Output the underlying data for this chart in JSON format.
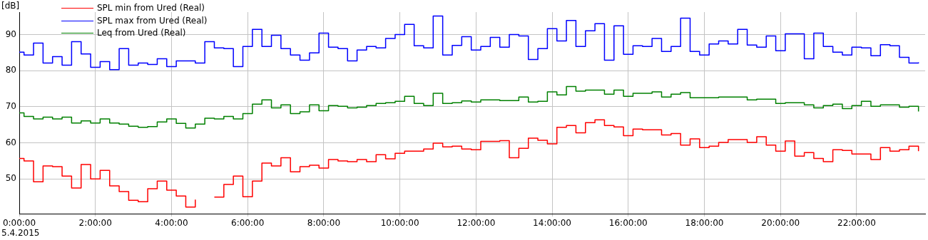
{
  "chart_data": {
    "type": "step",
    "ylabel": "[dB]",
    "annotations": [
      "5.4.2015"
    ],
    "x": [
      0,
      0.125,
      0.375,
      0.625,
      0.875,
      1.125,
      1.375,
      1.625,
      1.875,
      2.125,
      2.375,
      2.625,
      2.875,
      3.125,
      3.375,
      3.625,
      3.875,
      4.125,
      4.375,
      4.625,
      4.875,
      5.125,
      5.375,
      5.625,
      5.875,
      6.125,
      6.375,
      6.625,
      6.875,
      7.125,
      7.375,
      7.625,
      7.875,
      8.125,
      8.375,
      8.625,
      8.875,
      9.125,
      9.375,
      9.625,
      9.875,
      10.125,
      10.375,
      10.625,
      10.875,
      11.125,
      11.375,
      11.625,
      11.875,
      12.125,
      12.375,
      12.625,
      12.875,
      13.125,
      13.375,
      13.625,
      13.875,
      14.125,
      14.375,
      14.625,
      14.875,
      15.125,
      15.375,
      15.625,
      15.875,
      16.125,
      16.375,
      16.625,
      16.875,
      17.125,
      17.375,
      17.625,
      17.875,
      18.125,
      18.375,
      18.625,
      18.875,
      19.125,
      19.375,
      19.625,
      19.875,
      20.125,
      20.375,
      20.625,
      20.875,
      21.125,
      21.375,
      21.625,
      21.875,
      22.125,
      22.375,
      22.625,
      22.875,
      23.125,
      23.375,
      23.625
    ],
    "series": [
      {
        "name": "SPL min from Ured (Real)",
        "color": "#ff0000",
        "values": [
          55.7,
          55.0,
          49.2,
          53.6,
          53.4,
          50.8,
          47.5,
          54.0,
          50.0,
          52.4,
          48.1,
          46.5,
          44.1,
          43.7,
          47.3,
          49.4,
          46.9,
          45.3,
          42.2,
          44.3,
          null,
          45.0,
          48.5,
          50.8,
          45.1,
          49.4,
          54.4,
          53.6,
          55.9,
          52.0,
          53.4,
          53.8,
          53.0,
          55.4,
          55.0,
          54.8,
          55.4,
          54.8,
          56.7,
          55.6,
          57.1,
          57.7,
          57.7,
          58.3,
          59.9,
          58.9,
          59.1,
          58.3,
          58.1,
          60.4,
          60.4,
          60.6,
          55.9,
          58.5,
          61.3,
          60.7,
          59.7,
          64.3,
          64.8,
          62.8,
          65.6,
          66.4,
          64.8,
          64.4,
          62.0,
          63.8,
          63.6,
          63.6,
          62.2,
          62.6,
          59.4,
          61.1,
          58.7,
          59.1,
          60.1,
          60.9,
          60.9,
          60.1,
          61.7,
          59.4,
          57.7,
          60.5,
          56.3,
          57.3,
          55.7,
          54.8,
          58.1,
          57.9,
          56.9,
          56.9,
          55.4,
          58.7,
          57.7,
          58.1,
          59.1,
          57.7
        ]
      },
      {
        "name": "SPL max from Ured (Real)",
        "color": "#0000ff",
        "values": [
          85.1,
          84.3,
          87.6,
          82.1,
          83.9,
          81.5,
          88.0,
          84.6,
          80.9,
          82.5,
          80.3,
          86.1,
          81.5,
          82.1,
          81.7,
          83.3,
          81.1,
          82.7,
          82.7,
          82.1,
          88.0,
          86.3,
          86.1,
          81.1,
          86.7,
          91.4,
          86.7,
          89.8,
          86.1,
          84.3,
          82.9,
          84.9,
          90.4,
          86.5,
          86.1,
          82.7,
          85.7,
          86.7,
          86.3,
          88.9,
          90.0,
          92.8,
          86.9,
          86.3,
          95.1,
          84.3,
          87.0,
          89.4,
          85.7,
          86.7,
          89.2,
          86.5,
          90.0,
          89.6,
          83.1,
          86.1,
          91.6,
          88.2,
          93.9,
          86.7,
          91.0,
          93.0,
          82.9,
          92.4,
          84.5,
          86.9,
          86.7,
          88.9,
          85.3,
          86.7,
          94.5,
          85.3,
          84.3,
          87.4,
          88.2,
          87.4,
          91.4,
          87.1,
          86.5,
          89.6,
          85.5,
          90.2,
          90.2,
          83.3,
          90.4,
          86.7,
          85.1,
          84.3,
          86.5,
          86.3,
          84.1,
          87.2,
          86.9,
          83.7,
          82.1,
          82.3
        ]
      },
      {
        "name": "Leq from Ured (Real)",
        "color": "#008000",
        "values": [
          68.3,
          67.3,
          66.6,
          67.1,
          66.6,
          67.1,
          65.5,
          66.1,
          65.5,
          66.6,
          65.5,
          65.2,
          64.6,
          64.3,
          64.5,
          65.8,
          66.6,
          65.4,
          64.1,
          65.2,
          66.8,
          66.6,
          67.3,
          66.6,
          68.1,
          70.7,
          71.9,
          69.7,
          70.5,
          68.1,
          68.6,
          70.5,
          68.9,
          70.3,
          70.1,
          69.7,
          69.9,
          70.3,
          70.9,
          71.1,
          71.5,
          72.9,
          70.9,
          70.3,
          73.7,
          70.9,
          71.1,
          71.6,
          71.3,
          71.9,
          71.9,
          71.7,
          71.7,
          72.7,
          71.3,
          71.5,
          74.1,
          73.3,
          75.6,
          74.3,
          74.6,
          74.6,
          73.5,
          74.6,
          72.9,
          73.7,
          73.7,
          74.1,
          72.7,
          73.5,
          73.9,
          72.5,
          72.5,
          72.5,
          72.7,
          72.7,
          72.7,
          71.9,
          72.1,
          72.1,
          70.9,
          71.1,
          71.1,
          70.5,
          69.7,
          70.3,
          70.7,
          69.5,
          70.3,
          71.5,
          70.1,
          70.5,
          70.5,
          69.9,
          70.1,
          68.7
        ]
      }
    ],
    "xlim": [
      0,
      23.8
    ],
    "xticks": [
      {
        "value": 0,
        "label": "0:00:00"
      },
      {
        "value": 2,
        "label": "2:00:00"
      },
      {
        "value": 4,
        "label": "4:00:00"
      },
      {
        "value": 6,
        "label": "6:00:00"
      },
      {
        "value": 8,
        "label": "8:00:00"
      },
      {
        "value": 10,
        "label": "10:00:00"
      },
      {
        "value": 12,
        "label": "12:00:00"
      },
      {
        "value": 14,
        "label": "14:00:00"
      },
      {
        "value": 16,
        "label": "16:00:00"
      },
      {
        "value": 18,
        "label": "18:00:00"
      },
      {
        "value": 20,
        "label": "20:00:00"
      },
      {
        "value": 22,
        "label": "22:00:00"
      }
    ],
    "ylim": [
      40.4,
      96.2
    ],
    "yticks": [
      50,
      60,
      70,
      80,
      90
    ],
    "grid": true,
    "legend": "top left"
  }
}
